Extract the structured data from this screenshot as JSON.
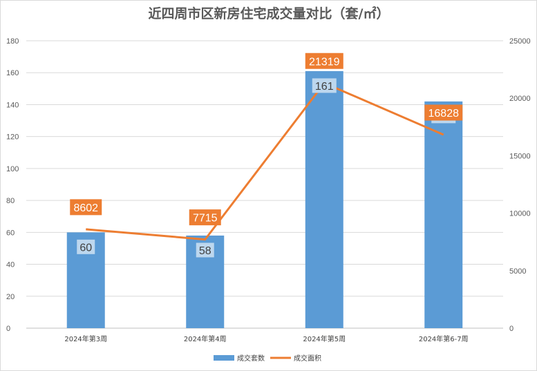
{
  "chart_data": {
    "type": "bar",
    "title": "近四周市区新房住宅成交量对比（套/㎡）",
    "categories": [
      "2024年第3周",
      "2024年第4周",
      "2024年第5周",
      "2024年第6-7周"
    ],
    "series": [
      {
        "name": "成交套数",
        "type": "bar",
        "axis": "left",
        "values": [
          60,
          58,
          161,
          142
        ],
        "color": "#5b9bd5"
      },
      {
        "name": "成交面积",
        "type": "line",
        "axis": "right",
        "values": [
          8602,
          7715,
          21319,
          16828
        ],
        "color": "#ed7d31"
      }
    ],
    "y_left": {
      "min": 0,
      "max": 180,
      "step": 20
    },
    "y_right": {
      "min": 0,
      "max": 25000,
      "step": 5000
    },
    "grid": true,
    "legend_position": "bottom"
  }
}
